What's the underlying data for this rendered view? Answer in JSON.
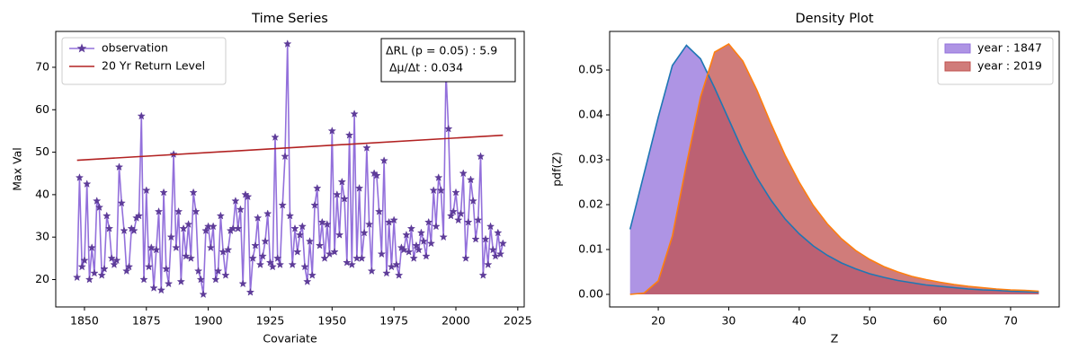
{
  "chart_data": [
    {
      "type": "line",
      "title": "Time Series",
      "x_label": "Covariate",
      "y_label": "Max Val",
      "xlim": [
        1838.4,
        2027.6
      ],
      "xticks": [
        1850,
        1875,
        1900,
        1925,
        1950,
        1975,
        2000,
        2025
      ],
      "ylim": [
        13.55,
        78.45
      ],
      "yticks": [
        20,
        30,
        40,
        50,
        60,
        70
      ],
      "legend": "upper left",
      "annotation": [
        "ΔRL (p = 0.05) : 5.9",
        " Δμ/Δt : 0.034"
      ],
      "series": [
        {
          "name": "observation",
          "color": "#9370db",
          "marker": "star",
          "marker_color": "#5e3c99",
          "x": [
            1847,
            1848,
            1849,
            1850,
            1851,
            1852,
            1853,
            1854,
            1855,
            1856,
            1857,
            1858,
            1859,
            1860,
            1861,
            1862,
            1863,
            1864,
            1865,
            1866,
            1867,
            1868,
            1869,
            1870,
            1871,
            1872,
            1873,
            1874,
            1875,
            1876,
            1877,
            1878,
            1879,
            1880,
            1881,
            1882,
            1883,
            1884,
            1885,
            1886,
            1887,
            1888,
            1889,
            1890,
            1891,
            1892,
            1893,
            1894,
            1895,
            1896,
            1897,
            1898,
            1899,
            1900,
            1901,
            1902,
            1903,
            1904,
            1905,
            1906,
            1907,
            1908,
            1909,
            1910,
            1911,
            1912,
            1913,
            1914,
            1915,
            1916,
            1917,
            1918,
            1919,
            1920,
            1921,
            1922,
            1923,
            1924,
            1925,
            1926,
            1927,
            1928,
            1929,
            1930,
            1931,
            1932,
            1933,
            1934,
            1935,
            1936,
            1937,
            1938,
            1939,
            1940,
            1941,
            1942,
            1943,
            1944,
            1945,
            1946,
            1947,
            1948,
            1949,
            1950,
            1951,
            1952,
            1953,
            1954,
            1955,
            1956,
            1957,
            1958,
            1959,
            1960,
            1961,
            1962,
            1963,
            1964,
            1965,
            1966,
            1967,
            1968,
            1969,
            1970,
            1971,
            1972,
            1973,
            1974,
            1975,
            1976,
            1977,
            1978,
            1979,
            1980,
            1981,
            1982,
            1983,
            1984,
            1985,
            1986,
            1987,
            1988,
            1989,
            1990,
            1991,
            1992,
            1993,
            1994,
            1995,
            1996,
            1997,
            1998,
            1999,
            2000,
            2001,
            2002,
            2003,
            2004,
            2005,
            2006,
            2007,
            2008,
            2009,
            2010,
            2011,
            2012,
            2013,
            2014,
            2015,
            2016,
            2017,
            2018,
            2019
          ],
          "values": [
            20.5,
            44,
            23,
            24.5,
            42.5,
            20,
            27.5,
            21.5,
            38.5,
            37,
            21,
            22.5,
            35,
            32,
            25,
            23.5,
            24.5,
            46.5,
            38,
            31.5,
            22,
            23,
            32,
            31.5,
            34.5,
            35,
            58.5,
            20,
            41,
            23,
            27.5,
            18,
            27,
            36,
            17.5,
            40.5,
            22.5,
            19,
            30,
            49.5,
            27.5,
            36,
            19.5,
            32,
            25.5,
            33,
            25,
            40.5,
            36,
            22,
            20,
            16.5,
            31.5,
            32.5,
            27.5,
            32.5,
            20,
            22,
            35,
            26.5,
            21,
            27,
            31.5,
            32,
            38.5,
            32,
            36.5,
            19,
            40,
            39.5,
            17,
            25,
            28,
            34.5,
            23.5,
            25.5,
            29,
            35.5,
            24,
            23,
            53.5,
            25,
            23.5,
            37.5,
            49,
            75.5,
            35,
            23.5,
            32,
            26.5,
            30.5,
            32.5,
            23,
            19.5,
            29,
            21,
            37.5,
            41.5,
            28,
            33.5,
            25,
            33,
            26,
            55,
            26.5,
            40,
            30.5,
            43,
            39,
            24,
            54,
            23.5,
            59,
            25,
            41.5,
            25,
            31,
            51,
            33,
            22,
            45,
            44.5,
            36,
            26,
            48,
            21.5,
            33.5,
            23,
            34,
            23.5,
            21,
            27.5,
            27,
            30.5,
            26.5,
            32,
            25,
            28,
            27,
            31,
            29,
            25.5,
            33.5,
            28.5,
            41,
            32.5,
            44,
            41,
            30,
            69,
            55.5,
            35,
            36,
            40.5,
            34,
            35.5,
            45,
            25,
            33.5,
            43.5,
            38.5,
            29.5,
            34,
            49,
            21,
            29.5,
            23.5,
            32.5,
            27,
            25.5,
            31,
            26,
            28.5
          ]
        },
        {
          "name": "20 Yr Return Level",
          "color": "#b22222",
          "x": [
            1847,
            2019
          ],
          "values": [
            48.1,
            54
          ]
        }
      ]
    },
    {
      "type": "area",
      "title": "Density Plot",
      "x_label": "Z",
      "y_label": "pdf(Z)",
      "x": [
        16,
        18,
        20,
        22,
        24,
        26,
        28,
        30,
        32,
        34,
        36,
        38,
        40,
        42,
        44,
        46,
        48,
        50,
        52,
        54,
        56,
        58,
        60,
        62,
        64,
        66,
        68,
        70,
        72,
        74
      ],
      "xlim": [
        13.1,
        76.9
      ],
      "xticks": [
        20,
        30,
        40,
        50,
        60,
        70
      ],
      "ylim": [
        -0.0028,
        0.0586
      ],
      "yticks": [
        {
          "value": 0,
          "label": "0.00"
        },
        {
          "value": 0.01,
          "label": "0.01"
        },
        {
          "value": 0.02,
          "label": "0.02"
        },
        {
          "value": 0.03,
          "label": "0.03"
        },
        {
          "value": 0.04,
          "label": "0.04"
        },
        {
          "value": 0.05,
          "label": "0.05"
        }
      ],
      "legend": "upper right",
      "series": [
        {
          "name": "year : 1847",
          "color": "#1f77b4",
          "fill": "#9370db",
          "values": [
            0.0145,
            0.027,
            0.0395,
            0.051,
            0.0555,
            0.0525,
            0.046,
            0.039,
            0.032,
            0.026,
            0.021,
            0.0168,
            0.0135,
            0.0108,
            0.0087,
            0.007,
            0.0057,
            0.0046,
            0.0038,
            0.0031,
            0.0026,
            0.0021,
            0.0018,
            0.0015,
            0.0012,
            0.001,
            0.0009,
            0.0007,
            0.0006,
            0.0005
          ]
        },
        {
          "name": "year : 2019",
          "color": "#ff7f0e",
          "fill": "#c0504d",
          "values": [
            0,
            0.0003,
            0.003,
            0.013,
            0.029,
            0.044,
            0.054,
            0.0558,
            0.052,
            0.0455,
            0.038,
            0.031,
            0.025,
            0.0198,
            0.0157,
            0.0124,
            0.0098,
            0.0078,
            0.0062,
            0.005,
            0.004,
            0.0033,
            0.0027,
            0.0022,
            0.0018,
            0.0015,
            0.0012,
            0.001,
            0.0009,
            0.0007
          ]
        }
      ]
    }
  ]
}
